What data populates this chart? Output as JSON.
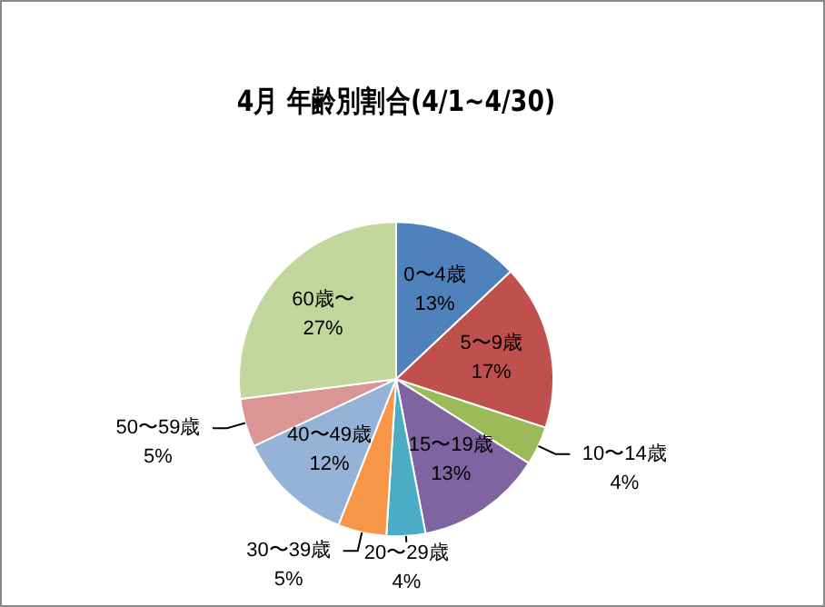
{
  "chart_data": {
    "type": "pie",
    "title": "4月 年齢別割合(4/1~4/30)",
    "categories": [
      "0〜4歳",
      "5〜9歳",
      "10〜14歳",
      "15〜19歳",
      "20〜29歳",
      "30〜39歳",
      "40〜49歳",
      "50〜59歳",
      "60歳〜"
    ],
    "values": [
      13,
      17,
      4,
      13,
      4,
      5,
      12,
      5,
      27
    ],
    "value_labels": [
      "13%",
      "17%",
      "4%",
      "13%",
      "4%",
      "5%",
      "12%",
      "5%",
      "27%"
    ],
    "colors": [
      "#4f81bd",
      "#c0504d",
      "#9bbb59",
      "#8064a2",
      "#4bacc6",
      "#f79646",
      "#95b3d7",
      "#d99694",
      "#c3d69b"
    ],
    "legend": false
  }
}
